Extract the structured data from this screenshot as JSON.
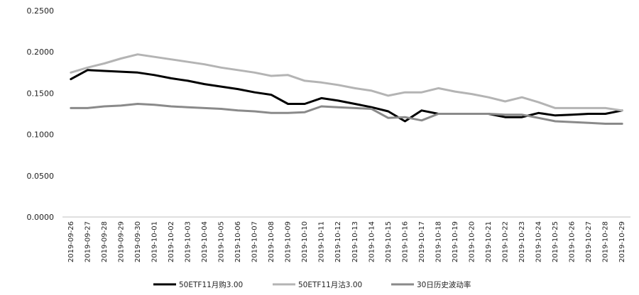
{
  "chart_data": {
    "type": "line",
    "title": "",
    "xlabel": "",
    "ylabel": "",
    "ylim": [
      0,
      0.25
    ],
    "yticks": [
      "0.0000",
      "0.0500",
      "0.1000",
      "0.1500",
      "0.2000",
      "0.2500"
    ],
    "grid": false,
    "legend_position": "bottom",
    "x": [
      "2019-09-26",
      "2019-09-27",
      "2019-09-28",
      "2019-09-29",
      "2019-09-30",
      "2019-10-01",
      "2019-10-02",
      "2019-10-03",
      "2019-10-04",
      "2019-10-05",
      "2019-10-06",
      "2019-10-07",
      "2019-10-08",
      "2019-10-09",
      "2019-10-10",
      "2019-10-11",
      "2019-10-12",
      "2019-10-13",
      "2019-10-14",
      "2019-10-15",
      "2019-10-16",
      "2019-10-17",
      "2019-10-18",
      "2019-10-19",
      "2019-10-20",
      "2019-10-21",
      "2019-10-22",
      "2019-10-23",
      "2019-10-24",
      "2019-10-25",
      "2019-10-26",
      "2019-10-27",
      "2019-10-28",
      "2019-10-29"
    ],
    "series": [
      {
        "name": "50ETF11月购3.00",
        "color": "#000000",
        "values": [
          0.167,
          0.178,
          0.177,
          0.176,
          0.175,
          0.172,
          0.168,
          0.165,
          0.161,
          0.158,
          0.155,
          0.151,
          0.148,
          0.137,
          0.137,
          0.144,
          0.141,
          0.137,
          0.133,
          0.128,
          0.116,
          0.129,
          0.125,
          0.125,
          0.125,
          0.125,
          0.121,
          0.121,
          0.126,
          0.123,
          0.124,
          0.125,
          0.125,
          0.129
        ]
      },
      {
        "name": "50ETF11月沽3.00",
        "color": "#b4b4b4",
        "values": [
          0.175,
          0.181,
          0.186,
          0.192,
          0.197,
          0.194,
          0.191,
          0.188,
          0.185,
          0.181,
          0.178,
          0.175,
          0.171,
          0.172,
          0.165,
          0.163,
          0.16,
          0.156,
          0.153,
          0.147,
          0.151,
          0.151,
          0.156,
          0.152,
          0.149,
          0.145,
          0.14,
          0.145,
          0.139,
          0.132,
          0.132,
          0.132,
          0.132,
          0.129
        ]
      },
      {
        "name": "30日历史波动率",
        "color": "#8a8a8a",
        "values": [
          0.132,
          0.132,
          0.134,
          0.135,
          0.137,
          0.136,
          0.134,
          0.133,
          0.132,
          0.131,
          0.129,
          0.128,
          0.126,
          0.126,
          0.127,
          0.134,
          0.133,
          0.132,
          0.131,
          0.12,
          0.121,
          0.117,
          0.125,
          0.125,
          0.125,
          0.125,
          0.124,
          0.124,
          0.12,
          0.116,
          0.115,
          0.114,
          0.113,
          0.113
        ]
      }
    ]
  }
}
